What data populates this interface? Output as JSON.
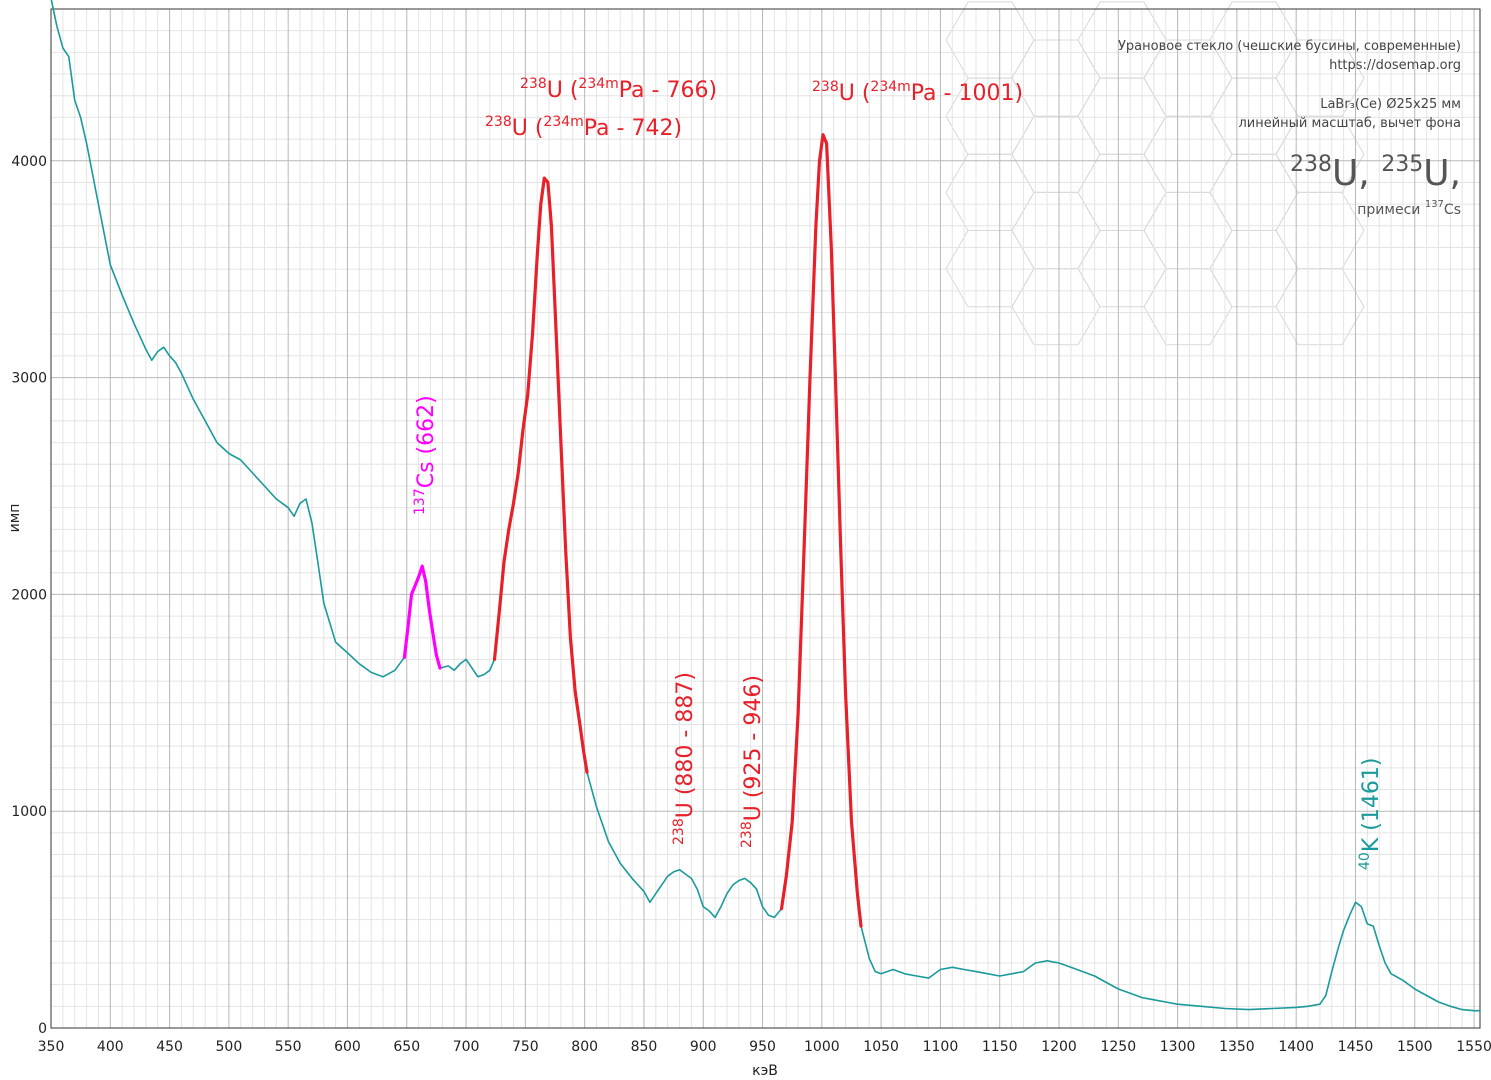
{
  "chart_data": {
    "type": "line",
    "xlabel": "кэВ",
    "ylabel": "имп",
    "xlim": [
      350,
      1555
    ],
    "ylim": [
      0,
      4700
    ],
    "x_ticks": [
      350,
      400,
      450,
      500,
      550,
      600,
      650,
      700,
      750,
      800,
      850,
      900,
      950,
      1000,
      1050,
      1100,
      1150,
      1200,
      1250,
      1300,
      1350,
      1400,
      1450,
      1500,
      1550
    ],
    "y_ticks": [
      0,
      1000,
      2000,
      3000,
      4000
    ],
    "grid": true,
    "info_lines": [
      "Урановое стекло (чешские бусины, современные)",
      "https://dosemap.org",
      "LaBr₃(Ce) Ø25x25 мм",
      "линейный масштаб, вычет фона"
    ],
    "big_title": {
      "p1": "238",
      "p2": "U, ",
      "p3": "235",
      "p4": "U,",
      "sub1": "примеси ",
      "sub2": "137",
      "sub3": "Cs"
    },
    "colors": {
      "spectrum": "#1a9a9a",
      "uranium": "#e8202a",
      "cesium": "#ff00ff"
    },
    "series": [
      {
        "color": "#1a9a9a",
        "x": [
          350,
          355,
          360,
          365,
          370,
          375,
          380,
          390,
          400,
          410,
          420,
          430,
          435,
          440,
          445,
          450,
          455,
          460,
          470,
          480,
          490,
          500,
          510,
          520,
          530,
          540,
          550,
          555,
          560,
          565,
          570,
          575,
          580,
          590,
          600,
          610,
          620,
          630,
          640,
          648
        ],
        "y": [
          4750,
          4620,
          4520,
          4480,
          4280,
          4200,
          4080,
          3800,
          3520,
          3380,
          3250,
          3130,
          3080,
          3120,
          3140,
          3100,
          3070,
          3020,
          2900,
          2800,
          2700,
          2650,
          2620,
          2560,
          2500,
          2440,
          2400,
          2360,
          2420,
          2440,
          2330,
          2150,
          1960,
          1780,
          1730,
          1680,
          1640,
          1620,
          1650,
          1710
        ]
      },
      {
        "color": "#1a9a9a",
        "x": [
          678,
          685,
          690,
          695,
          700,
          705,
          710,
          715,
          720,
          724
        ],
        "y": [
          1660,
          1670,
          1650,
          1680,
          1700,
          1660,
          1620,
          1630,
          1650,
          1700
        ]
      },
      {
        "color": "#1a9a9a",
        "x": [
          802,
          810,
          820,
          830,
          840,
          850,
          855,
          860,
          865,
          870,
          875,
          880,
          885,
          890,
          895,
          900,
          905,
          910,
          915,
          920,
          925,
          930,
          935,
          940,
          945,
          950,
          955,
          960,
          966
        ],
        "y": [
          1180,
          1020,
          860,
          760,
          690,
          630,
          580,
          620,
          660,
          700,
          720,
          730,
          710,
          690,
          640,
          560,
          540,
          510,
          560,
          620,
          660,
          680,
          690,
          670,
          640,
          560,
          520,
          510,
          550
        ]
      },
      {
        "color": "#1a9a9a",
        "x": [
          1033,
          1040,
          1045,
          1050,
          1060,
          1070,
          1080,
          1090,
          1100,
          1110,
          1120,
          1130,
          1140,
          1150,
          1160,
          1170,
          1180,
          1190,
          1200,
          1210,
          1220,
          1230,
          1240,
          1250,
          1260,
          1270,
          1280,
          1290,
          1300,
          1320,
          1340,
          1360,
          1380,
          1400,
          1410,
          1420,
          1425,
          1430,
          1435,
          1440,
          1445,
          1450,
          1455,
          1460,
          1465,
          1470,
          1475,
          1480,
          1490,
          1500,
          1510,
          1520,
          1530,
          1540,
          1550,
          1555
        ],
        "y": [
          470,
          320,
          260,
          250,
          270,
          250,
          240,
          230,
          270,
          280,
          270,
          260,
          250,
          240,
          250,
          260,
          300,
          310,
          300,
          280,
          260,
          240,
          210,
          180,
          160,
          140,
          130,
          120,
          110,
          100,
          90,
          85,
          90,
          95,
          100,
          110,
          150,
          260,
          360,
          450,
          520,
          580,
          560,
          480,
          470,
          380,
          300,
          250,
          220,
          180,
          150,
          120,
          100,
          85,
          80,
          80
        ]
      },
      {
        "color": "#ff00ff",
        "x": [
          648,
          651,
          654,
          657,
          660,
          663,
          666,
          669,
          672,
          675,
          678
        ],
        "y": [
          1710,
          1850,
          2000,
          2040,
          2080,
          2130,
          2060,
          1930,
          1820,
          1720,
          1660
        ]
      },
      {
        "color": "#e8202a",
        "x": [
          724,
          728,
          732,
          736,
          740,
          744,
          748,
          752,
          756,
          760,
          763,
          766,
          769,
          772,
          776,
          780,
          784,
          788,
          792,
          796,
          799,
          802
        ],
        "y": [
          1700,
          1920,
          2150,
          2300,
          2420,
          2560,
          2760,
          2920,
          3200,
          3560,
          3800,
          3920,
          3900,
          3700,
          3200,
          2700,
          2200,
          1800,
          1550,
          1400,
          1280,
          1180
        ]
      },
      {
        "color": "#e8202a",
        "x": [
          966,
          970,
          975,
          980,
          985,
          990,
          995,
          998,
          1001,
          1004,
          1008,
          1012,
          1016,
          1020,
          1025,
          1030,
          1033
        ],
        "y": [
          550,
          700,
          950,
          1450,
          2200,
          3000,
          3700,
          4000,
          4120,
          4080,
          3600,
          2900,
          2200,
          1550,
          950,
          620,
          470
        ]
      }
    ],
    "annotations": [
      {
        "color": "#e8202a",
        "sup": "238",
        "text1": "U (",
        "sup2": "234m",
        "text2": "Pa - 766)",
        "rot": 0
      },
      {
        "color": "#e8202a",
        "sup": "238",
        "text1": "U (",
        "sup2": "234m",
        "text2": "Pa - 742)",
        "rot": 0
      },
      {
        "color": "#e8202a",
        "sup": "238",
        "text1": "U (",
        "sup2": "234m",
        "text2": "Pa - 1001)",
        "rot": 0
      },
      {
        "color": "#ff00ff",
        "sup": "137",
        "text1": "Cs (662)",
        "sup2": "",
        "text2": "",
        "rot": -90
      },
      {
        "color": "#e8202a",
        "sup": "238",
        "text1": "U (880 - 887)",
        "sup2": "",
        "text2": "",
        "rot": -90
      },
      {
        "color": "#e8202a",
        "sup": "238",
        "text1": "U (925 - 946)",
        "sup2": "",
        "text2": "",
        "rot": -90
      },
      {
        "color": "#1a9a9a",
        "sup": "40",
        "text1": "K (1461)",
        "sup2": "",
        "text2": "",
        "rot": -90
      }
    ]
  }
}
